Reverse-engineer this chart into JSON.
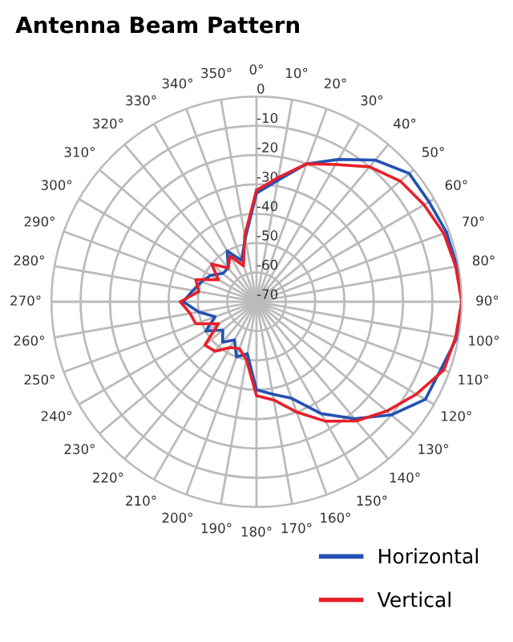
{
  "chart_data": {
    "type": "radar",
    "title": "Antenna Beam Pattern",
    "categories": [
      "0°",
      "10°",
      "20°",
      "30°",
      "40°",
      "50°",
      "60°",
      "70°",
      "80°",
      "90°",
      "100°",
      "110°",
      "120°",
      "130°",
      "140°",
      "150°",
      "160°",
      "170°",
      "180°",
      "190°",
      "200°",
      "210°",
      "220°",
      "230°",
      "240°",
      "250°",
      "260°",
      "270°",
      "280°",
      "290°",
      "300°",
      "310°",
      "320°",
      "330°",
      "340°",
      "350°"
    ],
    "series": [
      {
        "name": "Horizontal",
        "color": "#2451b3",
        "values": [
          -33,
          -28,
          -20,
          -14,
          -7,
          -2,
          -2,
          -1,
          -0.5,
          0,
          -0.5,
          -3,
          -3.5,
          -10,
          -18,
          -26,
          -35,
          -38,
          -40,
          -52,
          -50,
          -55,
          -52,
          -55,
          -50,
          -55,
          -50,
          -45,
          -48,
          -50,
          -52,
          -55,
          -55,
          -50,
          -55,
          -48
        ]
      },
      {
        "name": "Vertical",
        "color": "#e8202a",
        "values": [
          -32,
          -27,
          -20,
          -16,
          -10,
          -6,
          -4,
          -2,
          -1,
          0,
          -1,
          -2,
          -7,
          -12,
          -17,
          -23,
          -30,
          -36,
          -38,
          -50,
          -53,
          -52,
          -48,
          -47,
          -55,
          -48,
          -47,
          -44,
          -50,
          -48,
          -55,
          -50,
          -55,
          -52,
          -57,
          -47
        ]
      }
    ],
    "ylim": [
      -70,
      0
    ],
    "yticks": [
      0,
      -10,
      -20,
      -30,
      -40,
      -50,
      -60,
      -70
    ],
    "grid": true,
    "legend": "bottom right",
    "marker": "none",
    "line_style": "solid"
  }
}
